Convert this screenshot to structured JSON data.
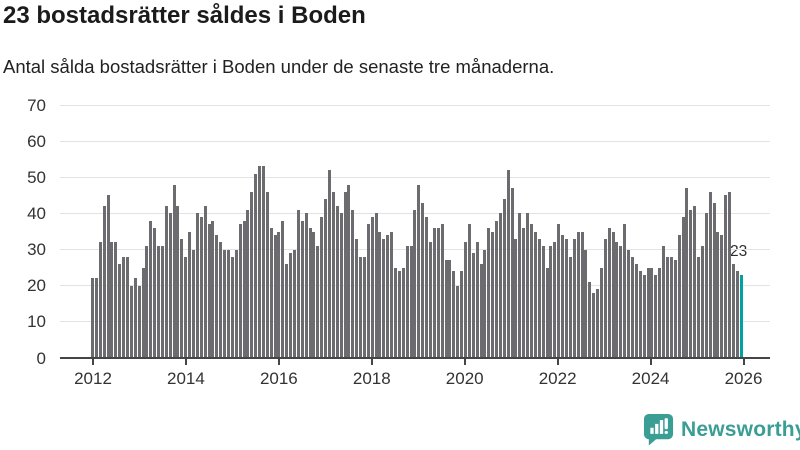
{
  "header": {
    "title": "23 bostadsrätter såldes i Boden",
    "subtitle": "Antal sålda bostadsrätter i Boden under de senaste tre månaderna."
  },
  "chart_data": {
    "type": "bar",
    "title": "23 bostadsrätter såldes i Boden",
    "subtitle": "Antal sålda bostadsrätter i Boden under de senaste tre månaderna.",
    "x_period": "monthly from 2012-01 to 2025-12",
    "x_tick_labels": [
      "2012",
      "2014",
      "2016",
      "2018",
      "2020",
      "2022",
      "2024",
      "2026"
    ],
    "y_ticks": [
      0,
      10,
      20,
      30,
      40,
      50,
      60,
      70
    ],
    "ylim": [
      0,
      70
    ],
    "xlabel": "",
    "ylabel": "",
    "grid": "horizontal",
    "legend": "none",
    "bar_color": "#6b6b70",
    "highlight_color": "#00a1a1",
    "highlight_last_bar": true,
    "last_value_label": "23",
    "values": [
      22,
      22,
      32,
      42,
      45,
      32,
      32,
      26,
      28,
      28,
      20,
      22,
      20,
      25,
      31,
      38,
      36,
      31,
      31,
      42,
      40,
      48,
      42,
      33,
      28,
      35,
      30,
      40,
      39,
      42,
      37,
      38,
      34,
      32,
      30,
      30,
      28,
      30,
      37,
      38,
      41,
      46,
      51,
      53,
      53,
      46,
      36,
      34,
      35,
      38,
      26,
      29,
      30,
      41,
      38,
      40,
      36,
      35,
      31,
      39,
      44,
      52,
      46,
      42,
      40,
      46,
      48,
      41,
      33,
      28,
      28,
      37,
      39,
      40,
      35,
      33,
      34,
      35,
      25,
      24,
      25,
      31,
      31,
      41,
      48,
      43,
      39,
      32,
      36,
      36,
      37,
      27,
      27,
      24,
      20,
      24,
      32,
      37,
      29,
      32,
      26,
      30,
      36,
      35,
      38,
      40,
      44,
      52,
      47,
      33,
      40,
      36,
      40,
      37,
      35,
      33,
      31,
      25,
      31,
      32,
      37,
      34,
      33,
      28,
      33,
      35,
      35,
      30,
      21,
      18,
      19,
      25,
      33,
      36,
      35,
      32,
      31,
      37,
      30,
      28,
      26,
      24,
      23,
      25,
      25,
      23,
      25,
      31,
      28,
      28,
      27,
      34,
      39,
      47,
      41,
      42,
      28,
      31,
      40,
      46,
      43,
      35,
      34,
      45,
      46,
      26,
      24,
      23
    ]
  },
  "branding": {
    "logo_text": "Newsworthy",
    "logo_color": "#3a9e95",
    "logo_icon": "bar-chart-speech-bubble-icon"
  }
}
